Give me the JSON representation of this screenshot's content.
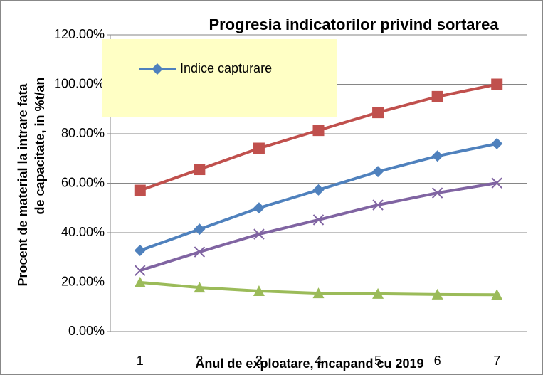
{
  "chart_data": {
    "type": "line",
    "title": "Progresia indicatorilor privind sortarea",
    "ylabel": [
      "Procent de material la intrare fata",
      "de capacitate, in %t/an"
    ],
    "xlabel": "Anul de exploatare, incapand cu 2019",
    "categories": [
      1,
      2,
      3,
      4,
      5,
      6,
      7
    ],
    "series": [
      {
        "color": "#c0504d",
        "marker": "square",
        "values": [
          57.1,
          65.6,
          74.1,
          81.4,
          88.6,
          95.0,
          100.0
        ]
      },
      {
        "name": "Indice capturare",
        "color": "#4f81bd",
        "marker": "diamond",
        "values": [
          32.8,
          41.4,
          50.0,
          57.3,
          64.7,
          71.0,
          76.0
        ]
      },
      {
        "color": "#8064a2",
        "marker": "x",
        "values": [
          24.7,
          32.2,
          39.4,
          45.2,
          51.2,
          56.1,
          60.1
        ]
      },
      {
        "color": "#9bbb59",
        "marker": "triangle",
        "values": [
          19.9,
          17.8,
          16.4,
          15.5,
          15.3,
          15.0,
          14.9
        ]
      }
    ],
    "ylim": [
      0,
      120
    ],
    "yticks": [
      {
        "value": 0,
        "label": "0.00%"
      },
      {
        "value": 20,
        "label": "20.00%"
      },
      {
        "value": 40,
        "label": "40.00%"
      },
      {
        "value": 60,
        "label": "60.00%"
      },
      {
        "value": 80,
        "label": "80.00%"
      },
      {
        "value": 100,
        "label": "100.00%"
      },
      {
        "value": 120,
        "label": "120.00%"
      }
    ],
    "grid": true,
    "legend": "upper left"
  }
}
